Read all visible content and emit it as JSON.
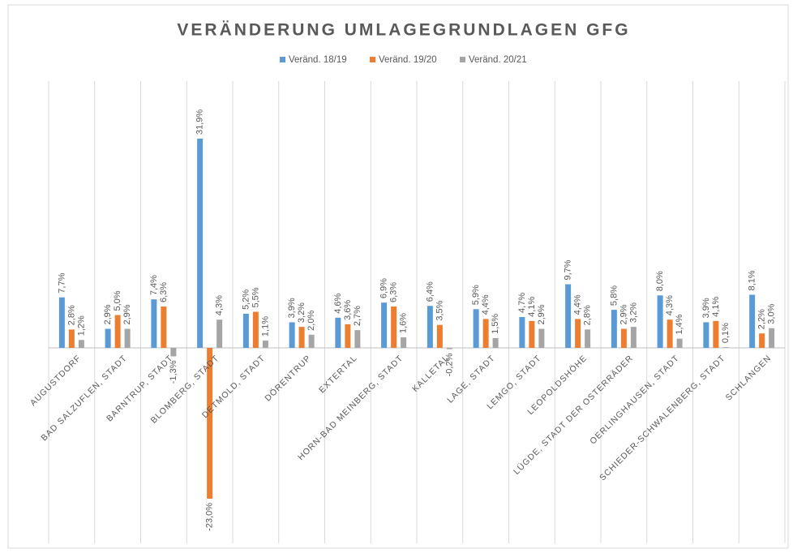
{
  "chart_data": {
    "type": "bar",
    "title": "VERÄNDERUNG UMLAGEGRUNDLAGEN GFG",
    "categories": [
      "AUGUSTDORF",
      "BAD SALZUFLEN, STADT",
      "BARNTRUP, STADT",
      "BLOMBERG, STADT",
      "DETMOLD, STADT",
      "DÖRENTRUP",
      "EXTERTAL",
      "HORN-BAD MEINBERG, STADT",
      "KALLETAL",
      "LAGE, STADT",
      "LEMGO, STADT",
      "LEOPOLDSHÖHE",
      "LÜGDE, STADT DER OSTERRÄDER",
      "OERLINGHAUSEN, STADT",
      "SCHIEDER-SCHWALENBERG, STADT",
      "SCHLANGEN"
    ],
    "series": [
      {
        "name": "Veränd. 18/19",
        "color": "#5b9bd5",
        "values": [
          7.7,
          2.9,
          7.4,
          31.9,
          5.2,
          3.9,
          4.6,
          6.9,
          6.4,
          5.9,
          4.7,
          9.7,
          5.8,
          8.0,
          3.9,
          8.1
        ],
        "value_labels": [
          "7,7%",
          "2,9%",
          "7,4%",
          "31,9%",
          "5,2%",
          "3,9%",
          "4,6%",
          "6,9%",
          "6,4%",
          "5,9%",
          "4,7%",
          "9,7%",
          "5,8%",
          "8,0%",
          "3,9%",
          "8,1%"
        ]
      },
      {
        "name": "Veränd. 19/20",
        "color": "#ed7d31",
        "values": [
          2.8,
          5.0,
          6.3,
          -23.0,
          5.5,
          3.2,
          3.6,
          6.3,
          3.5,
          4.4,
          4.1,
          4.4,
          2.9,
          4.3,
          4.1,
          2.2
        ],
        "value_labels": [
          "2,8%",
          "5,0%",
          "6,3%",
          "-23,0%",
          "5,5%",
          "3,2%",
          "3,6%",
          "6,3%",
          "3,5%",
          "4,4%",
          "4,1%",
          "4,4%",
          "2,9%",
          "4,3%",
          "4,1%",
          "2,2%"
        ]
      },
      {
        "name": "Veränd. 20/21",
        "color": "#a5a5a5",
        "values": [
          1.2,
          2.9,
          -1.3,
          4.3,
          1.1,
          2.0,
          2.7,
          1.6,
          -0.2,
          1.5,
          2.9,
          2.8,
          3.2,
          1.4,
          0.1,
          3.0
        ],
        "value_labels": [
          "1,2%",
          "2,9%",
          "-1,3%",
          "4,3%",
          "1,1%",
          "2,0%",
          "2,7%",
          "1,6%",
          "-0,2%",
          "1,5%",
          "2,9%",
          "2,8%",
          "3,2%",
          "1,4%",
          "0,1%",
          "3,0%"
        ]
      }
    ]
  }
}
